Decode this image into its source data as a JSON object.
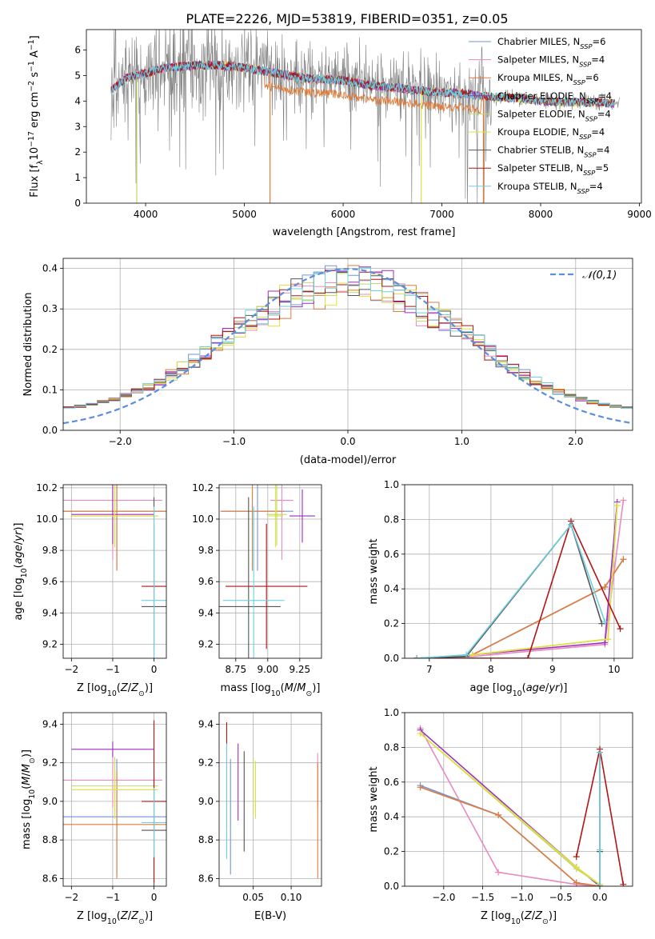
{
  "figure": {
    "title": "PLATE=2226, MJD=53819, FIBERID=0351, z=0.05"
  },
  "colors": {
    "chabrier_miles": "#6f93de",
    "salpeter_miles": "#e88ac0",
    "kroupa_miles": "#e07b39",
    "chabrier_elodie": "#9b2fbf",
    "salpeter_elodie": "#c0d86a",
    "kroupa_elodie": "#e0e040",
    "chabrier_stelib": "#555555",
    "salpeter_stelib": "#b01515",
    "kroupa_stelib": "#6fd0e0",
    "data_spectrum": "#808080",
    "normal_curve": "#5b8ee0"
  },
  "models": [
    {
      "key": "chabrier_miles",
      "imf": "Chabrier",
      "lib": "MILES",
      "nssp": "6"
    },
    {
      "key": "salpeter_miles",
      "imf": "Salpeter",
      "lib": "MILES",
      "nssp": "4"
    },
    {
      "key": "kroupa_miles",
      "imf": "Kroupa",
      "lib": "MILES",
      "nssp": "6"
    },
    {
      "key": "chabrier_elodie",
      "imf": "Chabrier",
      "lib": "ELODIE",
      "nssp": "4"
    },
    {
      "key": "salpeter_elodie",
      "imf": "Salpeter",
      "lib": "ELODIE",
      "nssp": "4"
    },
    {
      "key": "kroupa_elodie",
      "imf": "Kroupa",
      "lib": "ELODIE",
      "nssp": "4"
    },
    {
      "key": "chabrier_stelib",
      "imf": "Chabrier",
      "lib": "STELIB",
      "nssp": "4"
    },
    {
      "key": "salpeter_stelib",
      "imf": "Salpeter",
      "lib": "STELIB",
      "nssp": "5"
    },
    {
      "key": "kroupa_stelib",
      "imf": "Kroupa",
      "lib": "STELIB",
      "nssp": "4"
    }
  ],
  "chart_data": [
    {
      "id": "spectrum",
      "type": "line",
      "xlabel": "wavelength [Angstrom, rest frame]",
      "ylabel": "Flux [f",
      "ylabel_tail": "10",
      "xlim": [
        3400,
        9020
      ],
      "ylim": [
        0,
        6.8
      ],
      "xticks": [
        4000,
        5000,
        6000,
        7000,
        8000,
        9000
      ],
      "yticks": [
        0,
        1,
        2,
        3,
        4,
        5,
        6
      ],
      "continuum": {
        "x": [
          3650,
          3800,
          3900,
          4000,
          4200,
          4500,
          4800,
          5000,
          5300,
          5600,
          6000,
          6300,
          6600,
          6800,
          7000,
          7200,
          7400,
          7600,
          7800,
          8000,
          8300,
          8600,
          8800
        ],
        "y": [
          4.4,
          4.9,
          5.0,
          5.1,
          5.3,
          5.4,
          5.4,
          5.3,
          5.1,
          4.9,
          4.8,
          4.6,
          4.5,
          4.4,
          4.35,
          4.3,
          4.2,
          4.15,
          4.1,
          4.0,
          3.95,
          3.95,
          3.9
        ]
      },
      "model_xrange": [
        3650,
        8750
      ],
      "dropouts": [
        {
          "x": 3910,
          "min": 0
        },
        {
          "x": 5260,
          "min": 0
        },
        {
          "x": 6790,
          "min": 0
        },
        {
          "x": 7420,
          "min": 0
        }
      ]
    },
    {
      "id": "residuals",
      "type": "line",
      "xlabel": "(data-model)/error",
      "ylabel": "Normed distribution",
      "xlim": [
        -2.5,
        2.5
      ],
      "ylim": [
        0,
        0.425
      ],
      "xticks": [
        -2,
        -1,
        0,
        1,
        2
      ],
      "yticks": [
        0.0,
        0.1,
        0.2,
        0.3,
        0.4
      ],
      "legend": "𝒩(0,1)",
      "legend_loc": "upper right",
      "bin_width": 0.1
    },
    {
      "id": "age_vs_z",
      "type": "scatter",
      "xlabel": "Z [log",
      "ylabel": "age  [log",
      "xlim": [
        -2.2,
        0.3
      ],
      "ylim": [
        9.11,
        10.22
      ],
      "xticks": [
        -2,
        -1,
        0
      ],
      "yticks": [
        9.2,
        9.4,
        9.6,
        9.8,
        10.0,
        10.2
      ],
      "points": [
        {
          "m": "chabrier_miles",
          "x": -0.9,
          "y": 10.05,
          "xerr": 1.3,
          "yerr": 0.38
        },
        {
          "m": "salpeter_miles",
          "x": -1.0,
          "y": 10.12,
          "xerr": 1.2,
          "yerr": 0.38
        },
        {
          "m": "kroupa_miles",
          "x": -0.9,
          "y": 10.05,
          "xerr": 1.3,
          "yerr": 0.38
        },
        {
          "m": "chabrier_elodie",
          "x": -1.0,
          "y": 10.03,
          "xerr": 1.0,
          "yerr": 0.19
        },
        {
          "m": "salpeter_elodie",
          "x": -0.95,
          "y": 10.02,
          "xerr": 1.05,
          "yerr": 0.2
        },
        {
          "m": "kroupa_elodie",
          "x": -0.95,
          "y": 10.02,
          "xerr": 1.05,
          "yerr": 0.2
        },
        {
          "m": "chabrier_stelib",
          "x": 0.0,
          "y": 9.44,
          "xerr": 0.3,
          "yerr": 0.7
        },
        {
          "m": "salpeter_stelib",
          "x": 0.0,
          "y": 9.57,
          "xerr": 0.3,
          "yerr": 0.4
        },
        {
          "m": "kroupa_stelib",
          "x": 0.0,
          "y": 9.48,
          "xerr": 0.3,
          "yerr": 0.6
        }
      ]
    },
    {
      "id": "age_vs_mass",
      "type": "scatter",
      "xlabel": "mass [log",
      "ylabel": "",
      "xlim": [
        8.62,
        9.42
      ],
      "ylim": [
        9.11,
        10.22
      ],
      "xticks": [
        8.75,
        9.0,
        9.25
      ],
      "yticks": [
        9.2,
        9.4,
        9.6,
        9.8,
        10.0,
        10.2
      ],
      "points": [
        {
          "m": "chabrier_miles",
          "x": 8.92,
          "y": 10.05,
          "xerr": 0.28,
          "yerr": 0.38
        },
        {
          "m": "salpeter_miles",
          "x": 9.11,
          "y": 10.12,
          "xerr": 0.09,
          "yerr": 0.38
        },
        {
          "m": "kroupa_miles",
          "x": 8.88,
          "y": 10.05,
          "xerr": 0.25,
          "yerr": 0.38
        },
        {
          "m": "chabrier_elodie",
          "x": 9.27,
          "y": 10.02,
          "xerr": 0.1,
          "yerr": 0.17
        },
        {
          "m": "salpeter_elodie",
          "x": 9.07,
          "y": 10.03,
          "xerr": 0.08,
          "yerr": 0.2
        },
        {
          "m": "kroupa_elodie",
          "x": 9.06,
          "y": 10.02,
          "xerr": 0.06,
          "yerr": 0.2
        },
        {
          "m": "chabrier_stelib",
          "x": 8.85,
          "y": 9.44,
          "xerr": 0.25,
          "yerr": 0.7
        },
        {
          "m": "salpeter_stelib",
          "x": 8.99,
          "y": 9.57,
          "xerr": 0.32,
          "yerr": 0.4
        },
        {
          "m": "kroupa_stelib",
          "x": 8.89,
          "y": 9.48,
          "xerr": 0.24,
          "yerr": 0.6
        }
      ]
    },
    {
      "id": "weight_vs_age",
      "type": "line",
      "xlabel": "age  [log",
      "ylabel": "mass weight",
      "xlim": [
        6.6,
        10.3
      ],
      "ylim": [
        0,
        1.0
      ],
      "xticks": [
        7,
        8,
        9,
        10
      ],
      "yticks": [
        0.0,
        0.2,
        0.4,
        0.6,
        0.8,
        1.0
      ],
      "series": [
        {
          "m": "chabrier_miles",
          "x": [
            6.8,
            7.7,
            9.85,
            10.15
          ],
          "y": [
            0.0,
            0.02,
            0.41,
            0.57
          ]
        },
        {
          "m": "salpeter_miles",
          "x": [
            6.8,
            7.7,
            9.85,
            10.15
          ],
          "y": [
            0.0,
            0.01,
            0.08,
            0.91
          ]
        },
        {
          "m": "kroupa_miles",
          "x": [
            6.8,
            7.7,
            9.85,
            10.15
          ],
          "y": [
            0.0,
            0.02,
            0.41,
            0.57
          ]
        },
        {
          "m": "chabrier_elodie",
          "x": [
            6.8,
            7.7,
            9.85,
            10.05
          ],
          "y": [
            0.0,
            0.02,
            0.09,
            0.9
          ]
        },
        {
          "m": "salpeter_elodie",
          "x": [
            6.8,
            7.7,
            9.9,
            10.05
          ],
          "y": [
            0.0,
            0.02,
            0.11,
            0.88
          ]
        },
        {
          "m": "kroupa_elodie",
          "x": [
            6.8,
            7.7,
            9.9,
            10.05
          ],
          "y": [
            0.0,
            0.02,
            0.11,
            0.88
          ]
        },
        {
          "m": "chabrier_stelib",
          "x": [
            6.8,
            7.6,
            9.3,
            9.8
          ],
          "y": [
            0.0,
            0.01,
            0.77,
            0.2
          ]
        },
        {
          "m": "salpeter_stelib",
          "x": [
            6.8,
            8.6,
            9.3,
            10.1
          ],
          "y": [
            0.0,
            0.0,
            0.79,
            0.17
          ]
        },
        {
          "m": "kroupa_stelib",
          "x": [
            6.8,
            7.6,
            9.3,
            9.85
          ],
          "y": [
            0.0,
            0.02,
            0.77,
            0.21
          ]
        }
      ]
    },
    {
      "id": "mass_vs_z",
      "type": "scatter",
      "xlabel": "Z [log",
      "ylabel": "mass [log",
      "xlim": [
        -2.2,
        0.3
      ],
      "ylim": [
        8.56,
        9.46
      ],
      "xticks": [
        -2,
        -1,
        0
      ],
      "yticks": [
        8.6,
        8.8,
        9.0,
        9.2,
        9.4
      ],
      "points": [
        {
          "m": "chabrier_miles",
          "x": -0.9,
          "y": 8.92,
          "xerr": 1.3,
          "yerr": 0.3
        },
        {
          "m": "salpeter_miles",
          "x": -1.0,
          "y": 9.11,
          "xerr": 1.2,
          "yerr": 0.14
        },
        {
          "m": "kroupa_miles",
          "x": -0.9,
          "y": 8.88,
          "xerr": 1.3,
          "yerr": 0.28
        },
        {
          "m": "chabrier_elodie",
          "x": -1.0,
          "y": 9.27,
          "xerr": 1.0,
          "yerr": 0.04
        },
        {
          "m": "salpeter_elodie",
          "x": -0.95,
          "y": 9.08,
          "xerr": 1.05,
          "yerr": 0.15
        },
        {
          "m": "kroupa_elodie",
          "x": -0.95,
          "y": 9.06,
          "xerr": 1.05,
          "yerr": 0.15
        },
        {
          "m": "chabrier_stelib",
          "x": 0.0,
          "y": 8.85,
          "xerr": 0.3,
          "yerr": 0.3
        },
        {
          "m": "salpeter_stelib",
          "x": 0.0,
          "y": 9.0,
          "xerr": 0.3,
          "yerr": 0.42
        },
        {
          "m": "kroupa_stelib",
          "x": 0.0,
          "y": 8.89,
          "xerr": 0.3,
          "yerr": 0.18
        }
      ]
    },
    {
      "id": "mass_vs_ebv",
      "type": "scatter",
      "xlabel": "E(B-V)",
      "ylabel": "",
      "xlim": [
        0.005,
        0.14
      ],
      "ylim": [
        8.56,
        9.46
      ],
      "xticks": [
        0.05,
        0.1
      ],
      "xticklabels": [
        "0.05",
        "0.10"
      ],
      "yticks": [
        8.6,
        8.8,
        9.0,
        9.2,
        9.4
      ],
      "points": [
        {
          "m": "chabrier_miles",
          "x": 0.02,
          "y": 8.92,
          "xerr": 0,
          "yerr": 0.3
        },
        {
          "m": "salpeter_miles",
          "x": 0.135,
          "y": 9.11,
          "xerr": 0,
          "yerr": 0.14
        },
        {
          "m": "kroupa_miles",
          "x": 0.135,
          "y": 8.9,
          "xerr": 0,
          "yerr": 0.3
        },
        {
          "m": "chabrier_elodie",
          "x": 0.03,
          "y": 9.1,
          "xerr": 0,
          "yerr": 0.2
        },
        {
          "m": "salpeter_elodie",
          "x": 0.05,
          "y": 9.08,
          "xerr": 0,
          "yerr": 0.15
        },
        {
          "m": "kroupa_elodie",
          "x": 0.053,
          "y": 9.06,
          "xerr": 0,
          "yerr": 0.15
        },
        {
          "m": "chabrier_stelib",
          "x": 0.038,
          "y": 9.0,
          "xerr": 0,
          "yerr": 0.26
        },
        {
          "m": "salpeter_stelib",
          "x": 0.015,
          "y": 9.14,
          "xerr": 0,
          "yerr": 0.27
        },
        {
          "m": "kroupa_stelib",
          "x": 0.015,
          "y": 9.0,
          "xerr": 0,
          "yerr": 0.3
        }
      ]
    },
    {
      "id": "weight_vs_z",
      "type": "line",
      "xlabel": "Z [log",
      "ylabel": "mass weight",
      "xlim": [
        -2.5,
        0.42
      ],
      "ylim": [
        0,
        1.0
      ],
      "xticks": [
        -2.0,
        -1.5,
        -1.0,
        -0.5,
        0.0
      ],
      "xticklabels": [
        "−2.0",
        "−1.5",
        "−1.0",
        "−0.5",
        "0.0"
      ],
      "yticks": [
        0.0,
        0.2,
        0.4,
        0.6,
        0.8,
        1.0
      ],
      "series": [
        {
          "m": "chabrier_miles",
          "x": [
            -2.3,
            -1.3,
            -0.3,
            0.0
          ],
          "y": [
            0.58,
            0.41,
            0.02,
            0.0
          ]
        },
        {
          "m": "salpeter_miles",
          "x": [
            -2.3,
            -1.3,
            -0.3,
            0.0
          ],
          "y": [
            0.91,
            0.08,
            0.01,
            0.0
          ]
        },
        {
          "m": "kroupa_miles",
          "x": [
            -2.3,
            -1.3,
            -0.3,
            0.0
          ],
          "y": [
            0.57,
            0.41,
            0.02,
            0.0
          ]
        },
        {
          "m": "chabrier_elodie",
          "x": [
            -2.3,
            -0.3,
            0.0
          ],
          "y": [
            0.9,
            0.11,
            0.0
          ]
        },
        {
          "m": "salpeter_elodie",
          "x": [
            -2.3,
            -0.3,
            0.0
          ],
          "y": [
            0.88,
            0.1,
            0.01
          ]
        },
        {
          "m": "kroupa_elodie",
          "x": [
            -2.3,
            -0.3,
            0.0
          ],
          "y": [
            0.88,
            0.11,
            0.01
          ]
        },
        {
          "m": "chabrier_stelib",
          "x": [
            0.0,
            0.0,
            0.0
          ],
          "y": [
            0.77,
            0.2,
            0.0
          ]
        },
        {
          "m": "salpeter_stelib",
          "x": [
            -0.3,
            0.0,
            0.3
          ],
          "y": [
            0.17,
            0.79,
            0.01
          ]
        },
        {
          "m": "kroupa_stelib",
          "x": [
            0.0,
            0.0,
            0.0
          ],
          "y": [
            0.77,
            0.21,
            0.0
          ]
        }
      ]
    }
  ]
}
